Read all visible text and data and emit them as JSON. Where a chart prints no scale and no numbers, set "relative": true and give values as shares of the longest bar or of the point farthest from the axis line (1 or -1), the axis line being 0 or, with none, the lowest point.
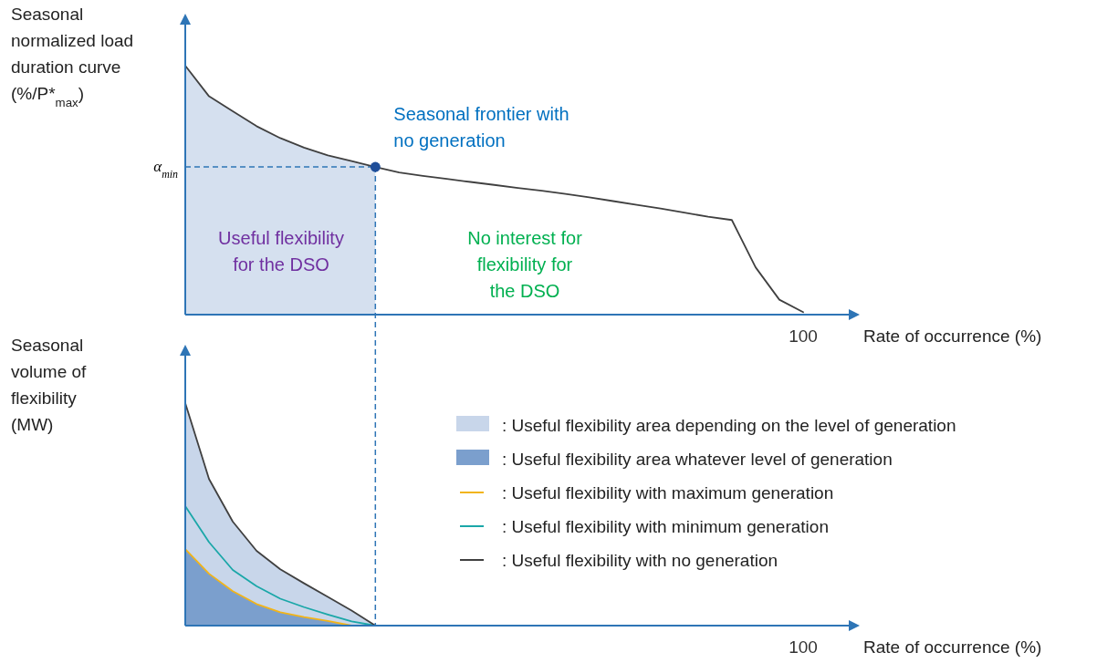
{
  "chart_data": [
    {
      "type": "line",
      "relative": true,
      "ylabel": "Seasonal normalized load duration curve (%/P*$_{max}$)",
      "xlabel": "Rate of occurrence (%)",
      "categories": [
        null,
        null,
        null,
        null,
        null,
        null,
        null,
        null,
        null,
        null,
        null,
        null,
        null,
        null,
        null,
        null,
        null,
        null,
        null,
        null,
        null,
        null,
        null,
        null,
        null,
        null,
        null
      ],
      "series": [
        {
          "color": "#404040",
          "values": [
            1,
            0.877,
            0.817,
            0.757,
            0.709,
            0.671,
            0.64,
            0.617,
            0.593,
            0.571,
            0.557,
            0.545,
            0.533,
            0.521,
            0.509,
            0.498,
            0.485,
            0.471,
            0.456,
            0.441,
            0.426,
            0.41,
            0.393,
            0.38,
            0.19,
            0.06,
            0.01
          ],
          "lower": [
            0,
            0,
            0,
            0,
            0,
            0,
            0,
            0,
            0,
            null,
            null,
            null,
            null,
            null,
            null,
            null,
            null,
            null,
            null,
            null,
            null,
            null,
            null,
            null,
            null,
            null,
            null
          ],
          "upper": [
            1,
            0.877,
            0.817,
            0.757,
            0.709,
            0.671,
            0.64,
            0.617,
            0.593,
            null,
            null,
            null,
            null,
            null,
            null,
            null,
            null,
            null,
            null,
            null,
            null,
            null,
            null,
            null,
            null,
            null,
            null
          ]
        }
      ],
      "ref_lines": [
        {
          "axis": "y",
          "value": 0.593,
          "label": "α$_{min}$",
          "color": "#2e75b6",
          "line_style": "dashed"
        }
      ],
      "annotations": [
        "Seasonal frontier with no generation",
        "Useful flexibility for the DSO",
        "No interest for flexibility for the DSO",
        "100"
      ],
      "legend": false
    },
    {
      "type": "line",
      "relative": true,
      "ylabel": "Seasonal volume of flexibility (MW)",
      "xlabel": "Rate of occurrence (%)",
      "categories": [
        null,
        null,
        null,
        null,
        null,
        null,
        null,
        null,
        null,
        null,
        null,
        null,
        null,
        null,
        null,
        null,
        null,
        null,
        null,
        null,
        null,
        null,
        null,
        null,
        null,
        null,
        null
      ],
      "series": [
        {
          "name": ": Useful flexibility with maximum generation",
          "color": "#f2b418",
          "values": [
            0.344,
            0.233,
            0.155,
            0.097,
            0.06,
            0.038,
            0.021,
            0,
            null,
            null,
            null,
            null,
            null,
            null,
            null,
            null,
            null,
            null,
            null,
            null,
            null,
            null,
            null,
            null,
            null,
            null,
            null
          ],
          "lower": [
            0,
            0,
            0,
            0,
            0,
            0,
            0,
            0,
            null,
            null,
            null,
            null,
            null,
            null,
            null,
            null,
            null,
            null,
            null,
            null,
            null,
            null,
            null,
            null,
            null,
            null,
            null
          ],
          "upper": [
            0.344,
            0.233,
            0.155,
            0.097,
            0.06,
            0.038,
            0.021,
            0,
            null,
            null,
            null,
            null,
            null,
            null,
            null,
            null,
            null,
            null,
            null,
            null,
            null,
            null,
            null,
            null,
            null,
            null,
            null
          ]
        },
        {
          "name": ": Useful flexibility with minimum generation",
          "color": "#1aa7a8",
          "values": [
            0.537,
            0.375,
            0.25,
            0.177,
            0.121,
            0.083,
            0.05,
            0.019,
            0,
            null,
            null,
            null,
            null,
            null,
            null,
            null,
            null,
            null,
            null,
            null,
            null,
            null,
            null,
            null,
            null,
            null,
            null
          ]
        },
        {
          "name": ": Useful flexibility with no generation",
          "color": "#404040",
          "values": [
            1,
            0.659,
            0.467,
            0.336,
            0.253,
            0.19,
            0.129,
            0.068,
            0,
            null,
            null,
            null,
            null,
            null,
            null,
            null,
            null,
            null,
            null,
            null,
            null,
            null,
            null,
            null,
            null,
            null,
            null
          ],
          "lower": [
            0,
            0,
            0,
            0,
            0,
            0,
            0,
            0,
            0,
            null,
            null,
            null,
            null,
            null,
            null,
            null,
            null,
            null,
            null,
            null,
            null,
            null,
            null,
            null,
            null,
            null,
            null
          ],
          "upper": [
            1,
            0.659,
            0.467,
            0.336,
            0.253,
            0.19,
            0.129,
            0.068,
            0,
            null,
            null,
            null,
            null,
            null,
            null,
            null,
            null,
            null,
            null,
            null,
            null,
            null,
            null,
            null,
            null,
            null,
            null
          ]
        }
      ],
      "annotations": [
        ": Useful flexibility area depending on the level of generation",
        ": Useful flexibility area whatever level of generation",
        "100"
      ],
      "legend": "right"
    }
  ]
}
